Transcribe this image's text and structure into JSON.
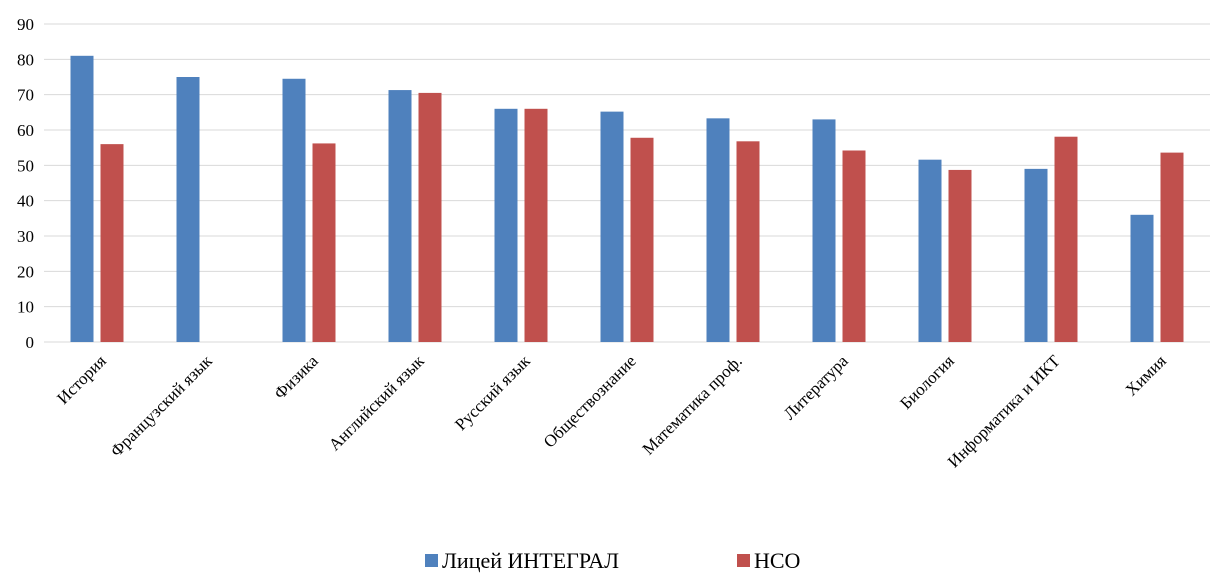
{
  "chart_data": {
    "type": "bar",
    "title": "",
    "xlabel": "",
    "ylabel": "",
    "ylim": [
      0,
      90
    ],
    "yticks": [
      0,
      10,
      20,
      30,
      40,
      50,
      60,
      70,
      80,
      90
    ],
    "grid": true,
    "legend_position": "bottom",
    "categories": [
      "История",
      "Французский язык",
      "Физика",
      "Английский язык",
      "Русский язык",
      "Обществознание",
      "Математика проф.",
      "Литература",
      "Биология",
      "Информатика и ИКТ",
      "Химия"
    ],
    "series": [
      {
        "name": "Лицей ИНТЕГРАЛ",
        "color": "#4f81bd",
        "values": [
          81,
          75,
          74.5,
          71.3,
          66,
          65.2,
          63.3,
          63,
          51.6,
          49,
          36
        ]
      },
      {
        "name": "НСО",
        "color": "#c0504d",
        "values": [
          56,
          null,
          56.2,
          70.5,
          66,
          57.8,
          56.8,
          54.2,
          48.7,
          58.1,
          53.6
        ]
      }
    ]
  }
}
